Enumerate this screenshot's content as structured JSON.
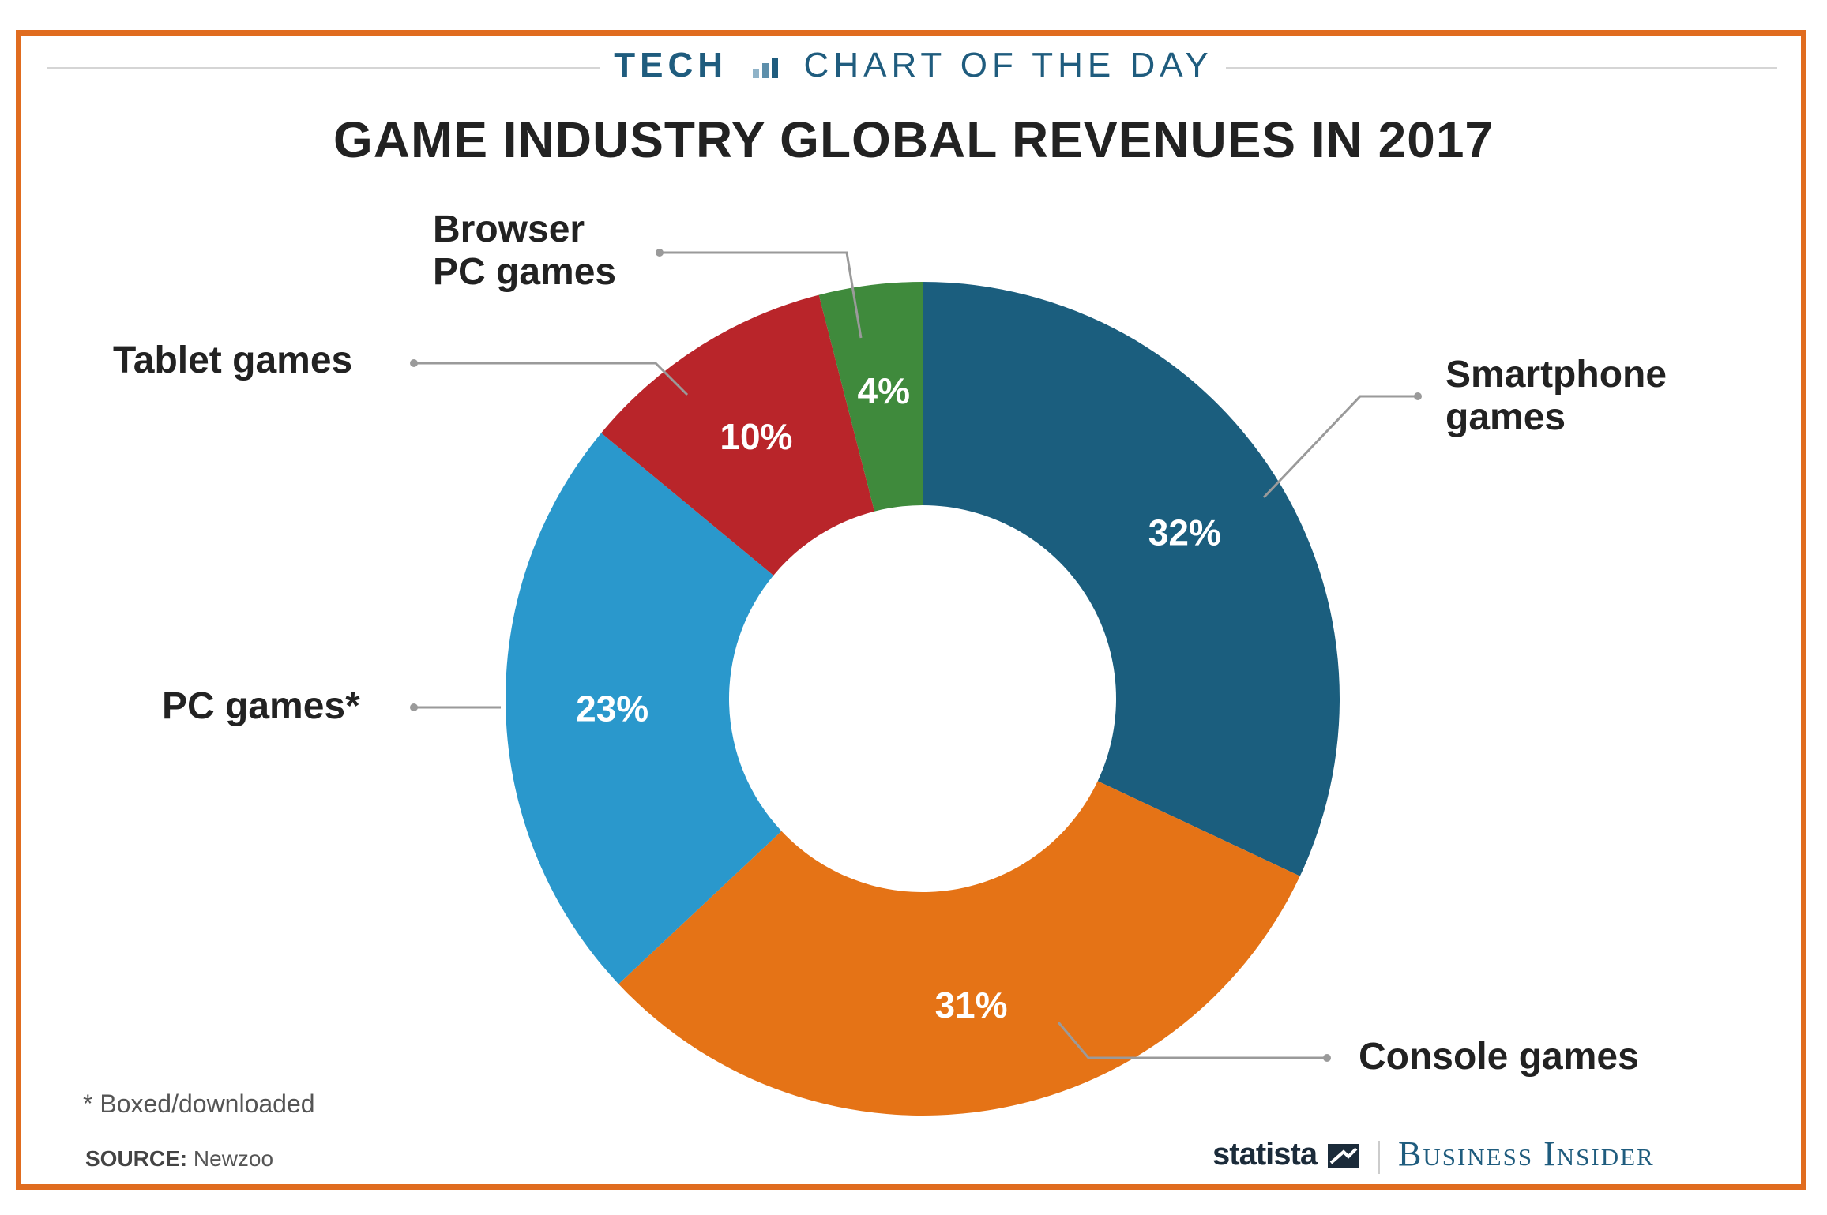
{
  "header": {
    "kicker_tech": "TECH",
    "kicker_rest": "CHART OF THE DAY",
    "title": "GAME INDUSTRY GLOBAL REVENUES IN 2017"
  },
  "chart_data": {
    "type": "pie",
    "title": "GAME INDUSTRY GLOBAL REVENUES IN 2017",
    "series": [
      {
        "name": "Smartphone games",
        "value": 32,
        "label": "32%",
        "color": "#1b5e7e"
      },
      {
        "name": "Console games",
        "value": 31,
        "label": "31%",
        "color": "#e57316"
      },
      {
        "name": "PC games*",
        "value": 23,
        "label": "23%",
        "color": "#2a98cc"
      },
      {
        "name": "Tablet games",
        "value": 10,
        "label": "10%",
        "color": "#b9252a"
      },
      {
        "name": "Browser PC games",
        "value": 4,
        "label": "4%",
        "color": "#3f8a3c"
      }
    ]
  },
  "labels": {
    "smartphone_l1": "Smartphone",
    "smartphone_l2": "games",
    "console": "Console games",
    "pc": "PC games*",
    "tablet": "Tablet games",
    "browser_l1": "Browser",
    "browser_l2": "PC games"
  },
  "footer": {
    "note": "* Boxed/downloaded",
    "source_label": "SOURCE:",
    "source_value": "Newzoo",
    "brand_statista": "statista",
    "brand_bi": "Business Insider"
  }
}
